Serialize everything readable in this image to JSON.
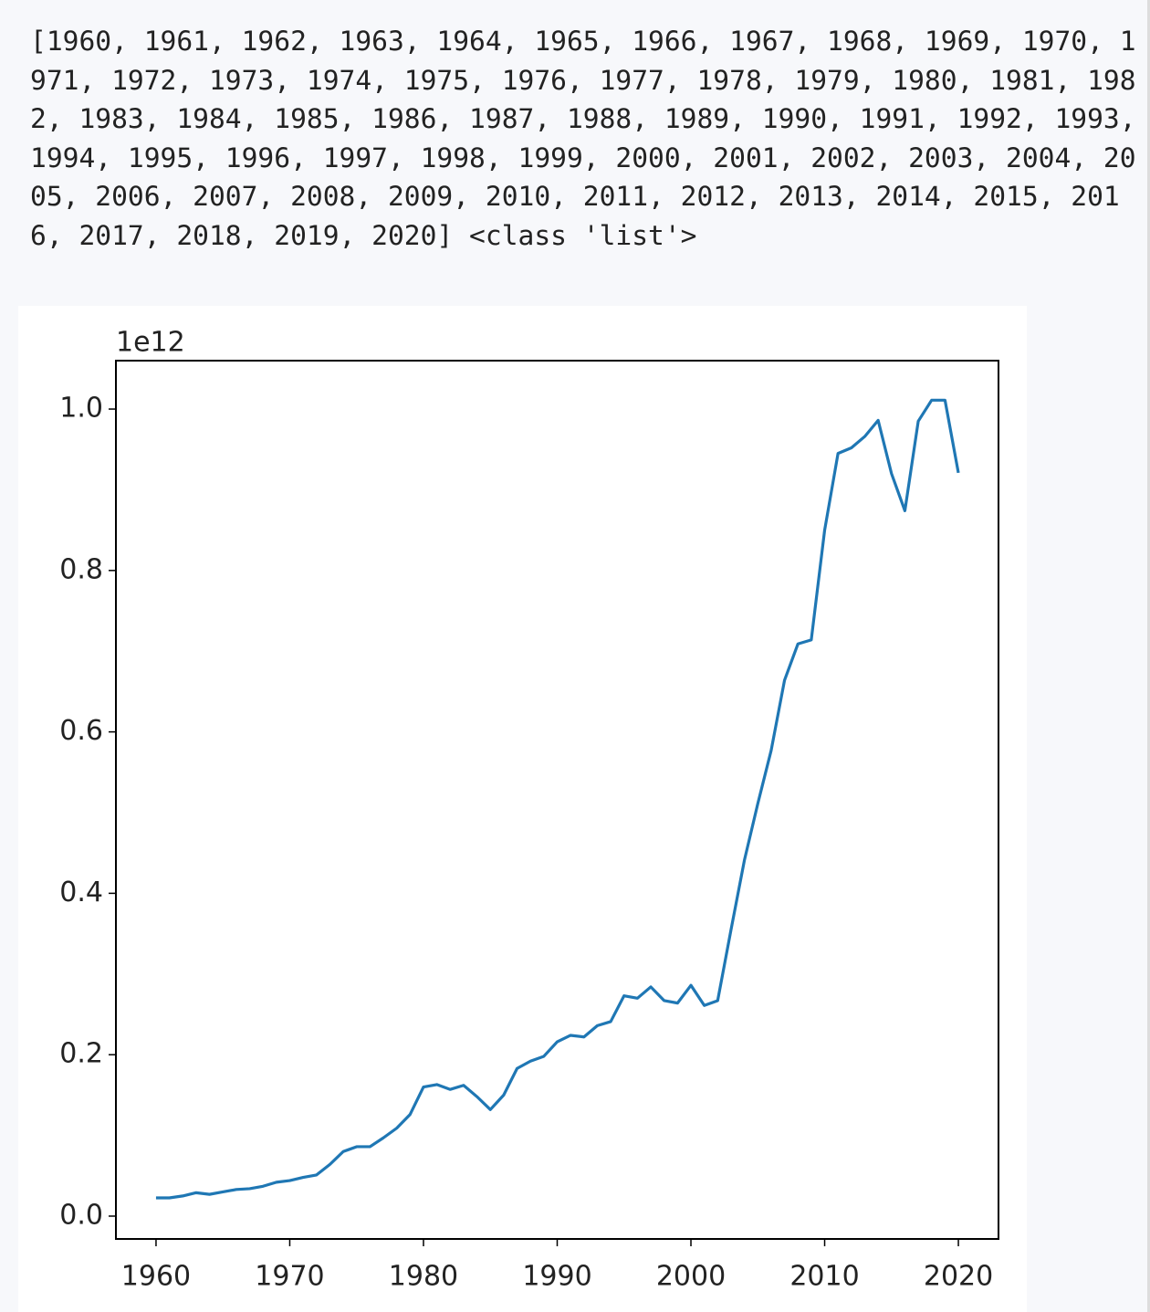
{
  "output_text": "[1960, 1961, 1962, 1963, 1964, 1965, 1966, 1967, 1968, 1969, 1970, 1971, 1972, 1973, 1974, 1975, 1976, 1977, 1978, 1979, 1980, 1981, 1982, 1983, 1984, 1985, 1986, 1987, 1988, 1989, 1990, 1991, 1992, 1993, 1994, 1995, 1996, 1997, 1998, 1999, 2000, 2001, 2002, 2003, 2004, 2005, 2006, 2007, 2008, 2009, 2010, 2011, 2012, 2013, 2014, 2015, 2016, 2017, 2018, 2019, 2020] <class 'list'>",
  "chart_data": {
    "type": "line",
    "color": "#1f77b4",
    "y_offset_text": "1e12",
    "x": [
      1960,
      1961,
      1962,
      1963,
      1964,
      1965,
      1966,
      1967,
      1968,
      1969,
      1970,
      1971,
      1972,
      1973,
      1974,
      1975,
      1976,
      1977,
      1978,
      1979,
      1980,
      1981,
      1982,
      1983,
      1984,
      1985,
      1986,
      1987,
      1988,
      1989,
      1990,
      1991,
      1992,
      1993,
      1994,
      1995,
      1996,
      1997,
      1998,
      1999,
      2000,
      2001,
      2002,
      2003,
      2004,
      2005,
      2006,
      2007,
      2008,
      2009,
      2010,
      2011,
      2012,
      2013,
      2014,
      2015,
      2016,
      2017,
      2018,
      2019,
      2020
    ],
    "values": [
      22600000000,
      22600000000,
      25000000000,
      29000000000,
      27000000000,
      30000000000,
      33000000000,
      34000000000,
      37000000000,
      42000000000,
      44000000000,
      48000000000,
      51000000000,
      64000000000,
      80000000000,
      86000000000,
      86000000000,
      97000000000,
      109000000000,
      126000000000,
      160000000000,
      163000000000,
      157000000000,
      162000000000,
      148000000000,
      132000000000,
      150000000000,
      183000000000,
      192000000000,
      198000000000,
      216000000000,
      224000000000,
      222000000000,
      236000000000,
      241000000000,
      273000000000,
      270000000000,
      284000000000,
      267000000000,
      264000000000,
      286000000000,
      261000000000,
      267000000000,
      355000000000,
      441000000000,
      511000000000,
      577000000000,
      664000000000,
      709000000000,
      714000000000,
      850000000000,
      945000000000,
      952000000000,
      966000000000,
      986000000000,
      920000000000,
      874000000000,
      985000000000,
      1011000000000,
      1011000000000,
      921000000000
    ],
    "xlim": [
      1957,
      2023
    ],
    "xticks": [
      1960,
      1970,
      1980,
      1990,
      2000,
      2010,
      2020
    ],
    "ylim": [
      -28300000000,
      1060000000000
    ],
    "yticks": [
      {
        "value": 0,
        "label": "0.0"
      },
      {
        "value": 200000000000,
        "label": "0.2"
      },
      {
        "value": 400000000000,
        "label": "0.4"
      },
      {
        "value": 600000000000,
        "label": "0.6"
      },
      {
        "value": 800000000000,
        "label": "0.8"
      },
      {
        "value": 1000000000000,
        "label": "1.0"
      }
    ]
  }
}
